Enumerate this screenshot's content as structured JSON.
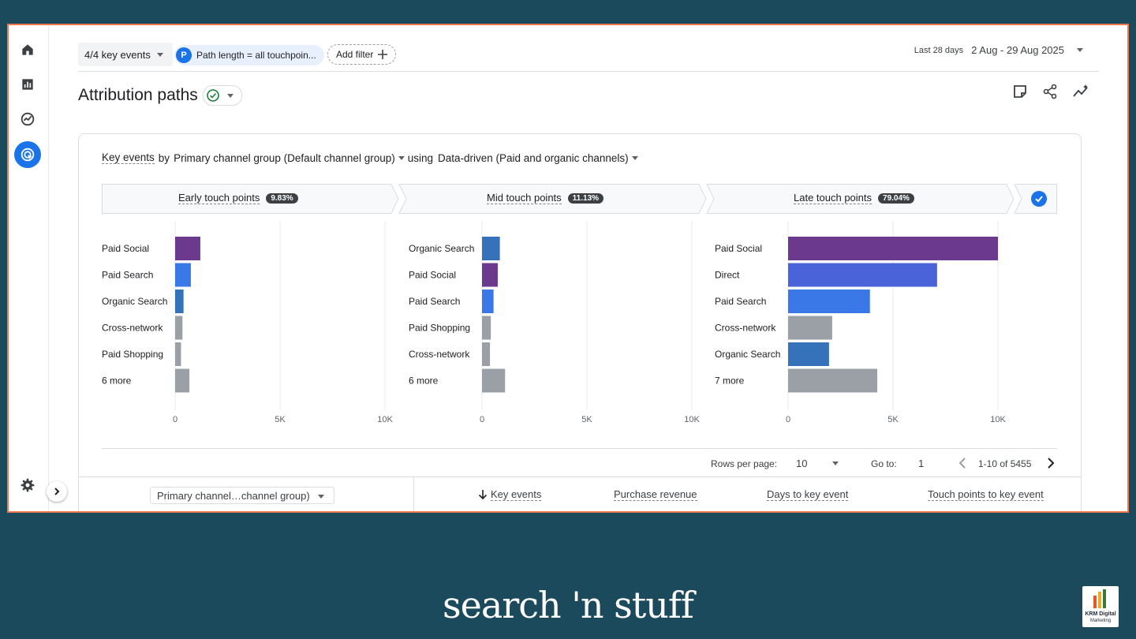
{
  "topbar": {
    "key_events_chip": "4/4 key events",
    "path_badge": "P",
    "path_chip": "Path length = all touchpoin...",
    "add_filter": "Add filter",
    "date_label": "Last 28 days",
    "date_range": "2 Aug - 29 Aug 2025"
  },
  "page": {
    "title": "Attribution paths"
  },
  "card": {
    "subtitle_metric": "Key events",
    "subtitle_by": "by",
    "subtitle_dimension": "Primary channel group (Default channel group)",
    "subtitle_using": "using",
    "subtitle_model": "Data-driven (Paid and organic channels)"
  },
  "phases": [
    {
      "label": "Early touch points",
      "pct": "9.83%"
    },
    {
      "label": "Mid touch points",
      "pct": "11.13%"
    },
    {
      "label": "Late touch points",
      "pct": "79.04%"
    }
  ],
  "colors": {
    "paid_social": "#6b3a8f",
    "paid_search": "#3b78e7",
    "organic_search": "#3672b9",
    "direct": "#4a63d8",
    "other": "#9aa0a6",
    "accent": "#1a73e8",
    "background": "#1b4a5c",
    "frame_border": "#f07a4c"
  },
  "chart_data": [
    {
      "type": "bar",
      "orientation": "horizontal",
      "title": "Early touch points",
      "categories": [
        "Paid Social",
        "Paid Search",
        "Organic Search",
        "Cross-network",
        "Paid Shopping",
        "6 more"
      ],
      "values": [
        1200,
        750,
        400,
        350,
        280,
        680
      ],
      "bar_colors": [
        "#6b3a8f",
        "#3b78e7",
        "#3672b9",
        "#9aa0a6",
        "#9aa0a6",
        "#9aa0a6"
      ],
      "xlim": [
        0,
        10000
      ],
      "xticks": [
        "0",
        "5K",
        "10K"
      ]
    },
    {
      "type": "bar",
      "orientation": "horizontal",
      "title": "Mid touch points",
      "categories": [
        "Organic Search",
        "Paid Social",
        "Paid Search",
        "Paid Shopping",
        "Cross-network",
        "6 more"
      ],
      "values": [
        850,
        750,
        550,
        420,
        380,
        1100
      ],
      "bar_colors": [
        "#3672b9",
        "#6b3a8f",
        "#3b78e7",
        "#9aa0a6",
        "#9aa0a6",
        "#9aa0a6"
      ],
      "xlim": [
        0,
        10000
      ],
      "xticks": [
        "0",
        "5K",
        "10K"
      ]
    },
    {
      "type": "bar",
      "orientation": "horizontal",
      "title": "Late touch points",
      "categories": [
        "Paid Social",
        "Direct",
        "Paid Search",
        "Cross-network",
        "Organic Search",
        "7 more"
      ],
      "values": [
        10000,
        7100,
        3900,
        2100,
        1950,
        4250
      ],
      "bar_colors": [
        "#6b3a8f",
        "#4a63d8",
        "#3b78e7",
        "#9aa0a6",
        "#3672b9",
        "#9aa0a6"
      ],
      "xlim": [
        0,
        10000
      ],
      "xticks": [
        "0",
        "5K",
        "10K"
      ]
    }
  ],
  "pager": {
    "rows_label": "Rows per page:",
    "rows_value": "10",
    "goto_label": "Go to:",
    "goto_value": "1",
    "range": "1-10 of 5455"
  },
  "table": {
    "dimension": "Primary channel…channel group)",
    "metrics": [
      "Key events",
      "Purchase revenue",
      "Days to key event",
      "Touch points to key event"
    ]
  },
  "footer": {
    "brand": "search 'n stuff",
    "logo_text_1": "KRM Digital",
    "logo_text_2": "Marketing"
  }
}
